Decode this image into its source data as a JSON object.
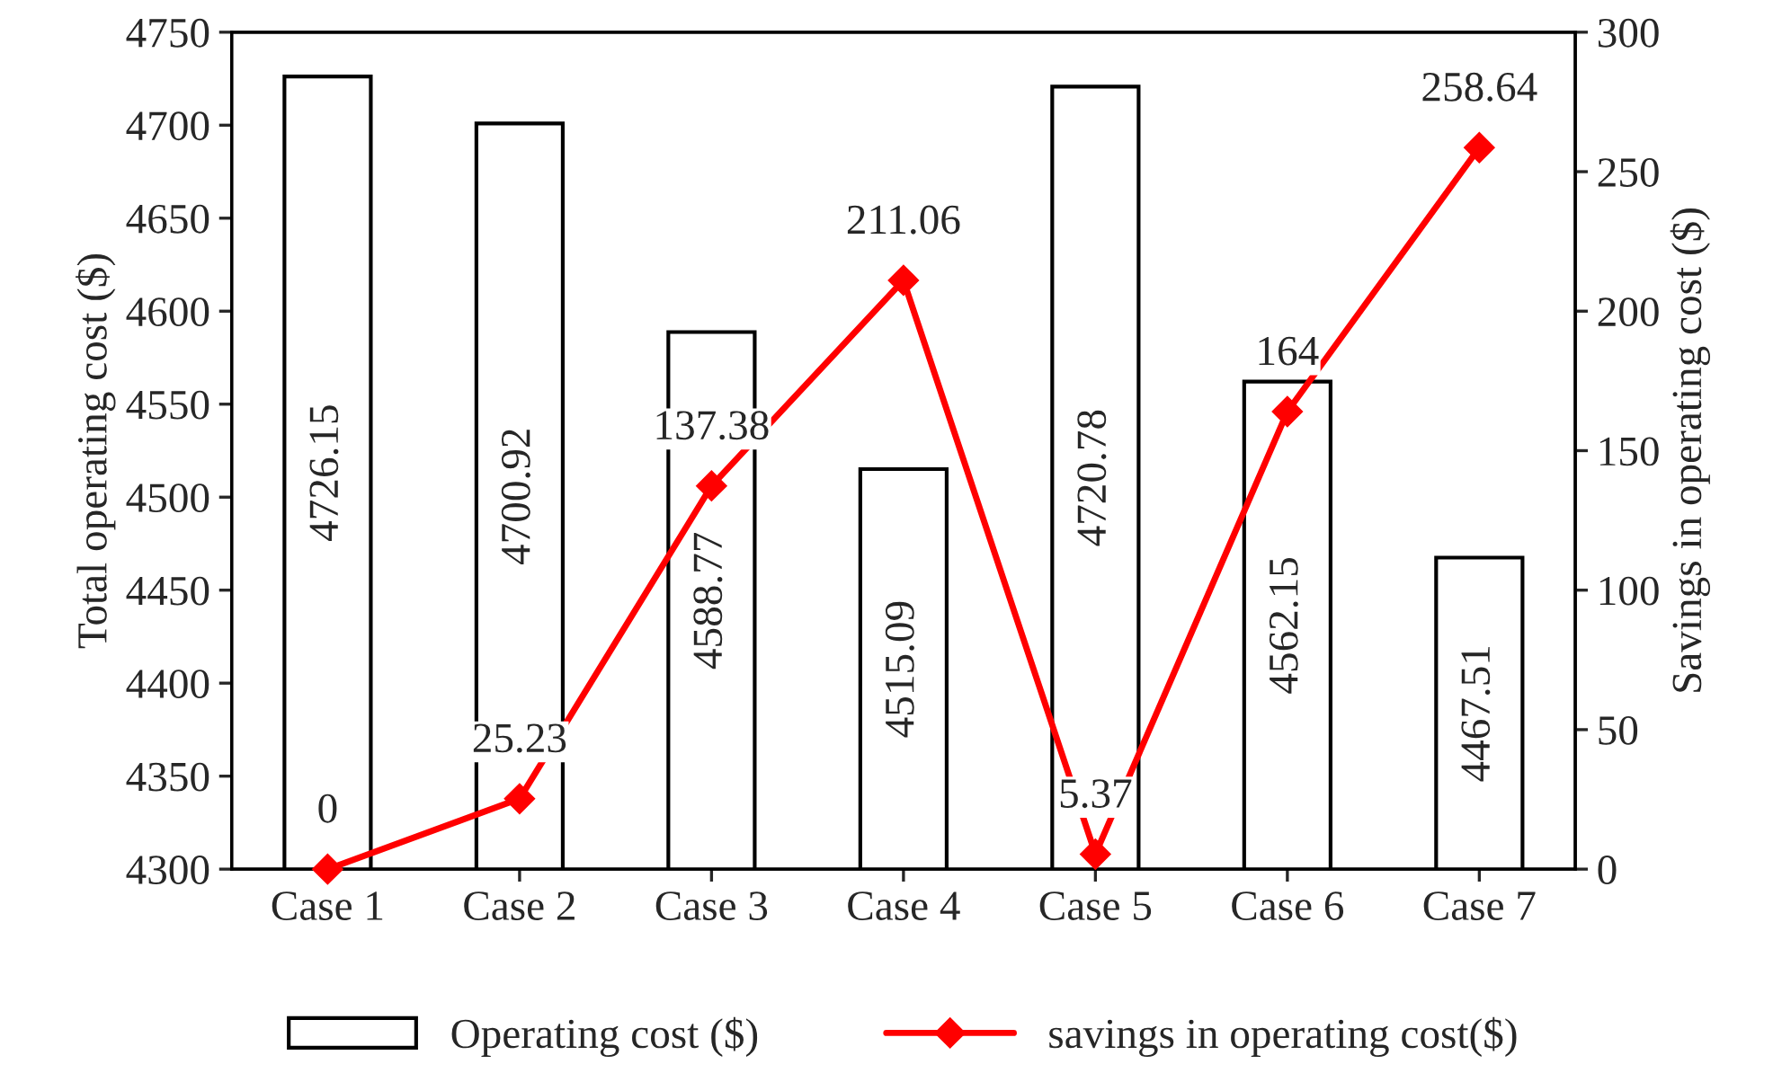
{
  "chart_data": {
    "type": "bar",
    "categories": [
      "Case 1",
      "Case 2",
      "Case 3",
      "Case 4",
      "Case 5",
      "Case 6",
      "Case 7"
    ],
    "ylabel": "Total operating cost ($)",
    "y2label": "Savings in operating cost ($)",
    "ylim": [
      4300,
      4750
    ],
    "yticks": [
      4300,
      4350,
      4400,
      4450,
      4500,
      4550,
      4600,
      4650,
      4700,
      4750
    ],
    "y2lim": [
      0,
      300
    ],
    "y2ticks": [
      0,
      50,
      100,
      150,
      200,
      250,
      300
    ],
    "series": [
      {
        "name": "Operating cost ($)",
        "color": "#ffffff",
        "values": [
          4726.15,
          4700.92,
          4588.77,
          4515.09,
          4720.78,
          4562.15,
          4467.51
        ]
      },
      {
        "name": "savings in operating cost($)",
        "type": "line",
        "axis": "y2",
        "color": "#ff0000",
        "marker": "diamond",
        "values": [
          0,
          25.23,
          137.38,
          211.06,
          5.37,
          164,
          258.64
        ]
      }
    ],
    "data_labels": true,
    "legend": "bottom",
    "grid": false
  }
}
